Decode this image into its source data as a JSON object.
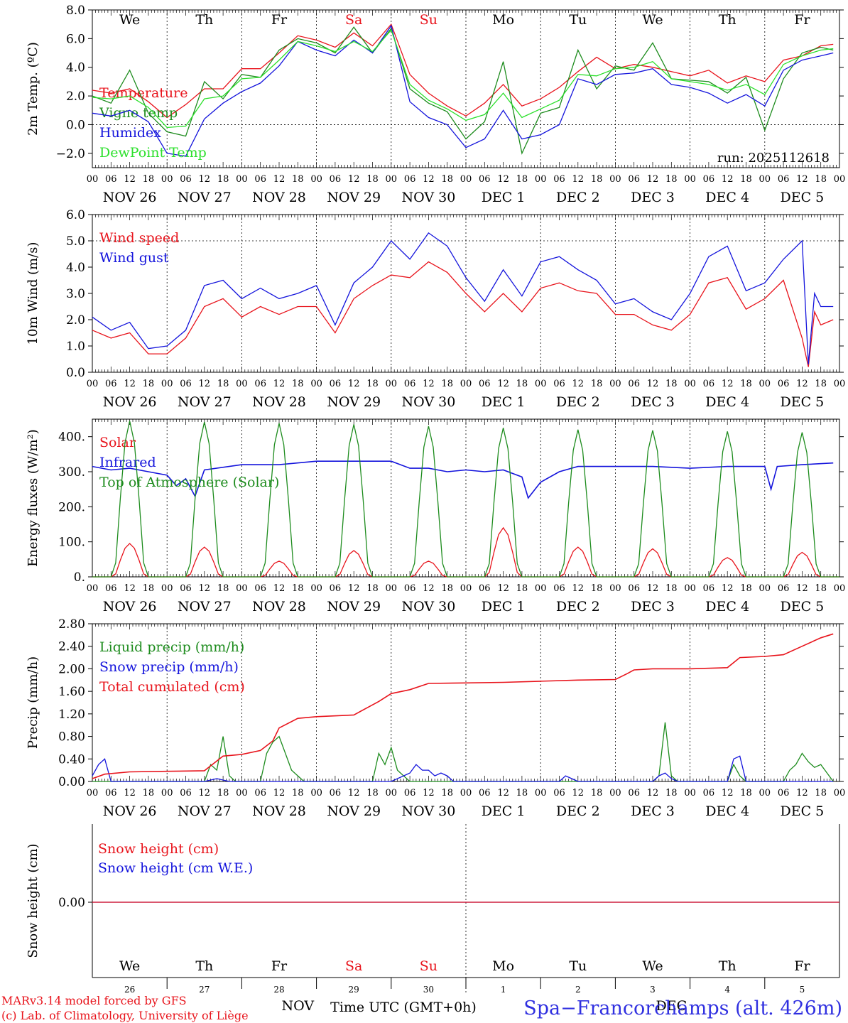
{
  "chart_data": [
    {
      "type": "line",
      "id": "temp",
      "ylabel": "2m Temp. (ºC)",
      "ylim": [
        -3,
        8
      ],
      "yticks": [
        -2,
        0,
        2,
        4,
        6,
        8
      ],
      "ytick_labels": [
        "−2.0",
        "0.0",
        "2.0",
        "4.0",
        "6.0",
        "8.0"
      ],
      "ref_lines": [
        0
      ],
      "run_label": "run: 2025112618",
      "series": [
        {
          "name": "Temperature",
          "color": "#e8141c",
          "x": [
            0,
            6,
            12,
            18,
            24,
            30,
            36,
            42,
            48,
            54,
            60,
            66,
            72,
            78,
            84,
            90,
            96,
            102,
            108,
            114,
            120,
            126,
            132,
            138,
            144,
            150,
            156,
            162,
            168,
            174,
            180,
            186,
            192,
            198,
            204,
            210,
            216,
            222,
            228,
            234,
            238
          ],
          "y": [
            2.4,
            2.2,
            2.5,
            1.6,
            0.5,
            1.4,
            2.5,
            2.5,
            3.9,
            3.9,
            5.0,
            6.2,
            5.9,
            5.4,
            6.4,
            5.5,
            7.0,
            3.5,
            2.2,
            1.3,
            0.6,
            1.5,
            2.8,
            1.3,
            1.8,
            2.6,
            3.7,
            4.7,
            3.9,
            4.2,
            4.0,
            3.7,
            3.4,
            3.8,
            2.9,
            3.4,
            3.0,
            4.5,
            4.8,
            5.5,
            5.6
          ]
        },
        {
          "name": "Vigne temp",
          "color": "#1e8c1e",
          "x": [
            0,
            6,
            12,
            18,
            24,
            30,
            36,
            42,
            48,
            54,
            60,
            66,
            72,
            78,
            84,
            90,
            96,
            102,
            108,
            114,
            120,
            126,
            132,
            138,
            144,
            150,
            156,
            162,
            168,
            174,
            180,
            186,
            192,
            198,
            204,
            210,
            216,
            222,
            228,
            234,
            238
          ],
          "y": [
            2.0,
            1.5,
            3.8,
            0.8,
            -0.5,
            -0.8,
            3.0,
            1.8,
            3.5,
            3.3,
            5.2,
            6.0,
            5.7,
            5.0,
            6.8,
            5.0,
            6.7,
            2.5,
            1.5,
            0.9,
            -1.0,
            0.2,
            4.4,
            -2.0,
            0.8,
            1.2,
            5.2,
            2.5,
            4.1,
            3.8,
            5.7,
            3.2,
            3.1,
            3.0,
            2.2,
            3.3,
            -0.4,
            3.2,
            5.0,
            5.4,
            5.2
          ]
        },
        {
          "name": "Humidex",
          "color": "#1414dc",
          "x": [
            0,
            6,
            12,
            18,
            24,
            30,
            36,
            42,
            48,
            54,
            60,
            66,
            72,
            78,
            84,
            90,
            96,
            102,
            108,
            114,
            120,
            126,
            132,
            138,
            144,
            150,
            156,
            162,
            168,
            174,
            180,
            186,
            192,
            198,
            204,
            210,
            216,
            222,
            228,
            234,
            238
          ],
          "y": [
            0.8,
            0.6,
            1.0,
            0.2,
            -2.0,
            -2.2,
            0.4,
            1.5,
            2.3,
            2.9,
            4.1,
            5.8,
            5.2,
            4.8,
            5.9,
            5.0,
            6.9,
            1.6,
            0.5,
            0.0,
            -1.6,
            -1.0,
            1.0,
            -1.0,
            -0.7,
            0.0,
            3.2,
            2.8,
            3.5,
            3.6,
            3.9,
            2.8,
            2.6,
            2.2,
            1.5,
            2.1,
            1.3,
            3.8,
            4.5,
            4.8,
            5.0
          ]
        },
        {
          "name": "DewPoint Temp",
          "color": "#2ce02c",
          "x": [
            0,
            6,
            12,
            18,
            24,
            30,
            36,
            42,
            48,
            54,
            60,
            66,
            72,
            78,
            84,
            90,
            96,
            102,
            108,
            114,
            120,
            126,
            132,
            138,
            144,
            150,
            156,
            162,
            168,
            174,
            180,
            186,
            192,
            198,
            204,
            210,
            216,
            222,
            228,
            234,
            238
          ],
          "y": [
            1.9,
            1.8,
            2.0,
            1.2,
            -0.2,
            -0.1,
            1.8,
            2.0,
            3.2,
            3.3,
            4.5,
            5.8,
            5.5,
            5.1,
            5.8,
            5.1,
            6.6,
            2.8,
            1.7,
            1.1,
            0.3,
            0.7,
            2.2,
            0.5,
            1.1,
            1.7,
            3.5,
            3.4,
            3.9,
            4.0,
            4.4,
            3.2,
            3.0,
            2.8,
            2.4,
            2.8,
            2.1,
            4.2,
            4.8,
            5.2,
            5.3
          ]
        }
      ]
    },
    {
      "type": "line",
      "id": "wind",
      "ylabel": "10m Wind (m/s)",
      "ylim": [
        0,
        6
      ],
      "yticks": [
        0,
        1,
        2,
        3,
        4,
        5,
        6
      ],
      "ytick_labels": [
        "0.0",
        "1.0",
        "2.0",
        "3.0",
        "4.0",
        "5.0",
        "6.0"
      ],
      "ref_lines": [
        5
      ],
      "series": [
        {
          "name": "Wind speed",
          "color": "#e8141c",
          "x": [
            0,
            6,
            12,
            18,
            24,
            30,
            36,
            42,
            48,
            54,
            60,
            66,
            72,
            78,
            84,
            90,
            96,
            102,
            108,
            114,
            120,
            126,
            132,
            138,
            144,
            150,
            156,
            162,
            168,
            174,
            180,
            186,
            192,
            198,
            204,
            210,
            216,
            222,
            228,
            230,
            232,
            234,
            238
          ],
          "y": [
            1.6,
            1.3,
            1.5,
            0.7,
            0.7,
            1.3,
            2.5,
            2.8,
            2.1,
            2.5,
            2.2,
            2.5,
            2.5,
            1.5,
            2.8,
            3.3,
            3.7,
            3.6,
            4.2,
            3.8,
            3.0,
            2.3,
            3.0,
            2.3,
            3.2,
            3.4,
            3.1,
            3.0,
            2.2,
            2.2,
            1.8,
            1.6,
            2.2,
            3.4,
            3.6,
            2.4,
            2.8,
            3.5,
            1.3,
            0.2,
            2.3,
            1.8,
            2.0
          ]
        },
        {
          "name": "Wind gust",
          "color": "#1414dc",
          "x": [
            0,
            6,
            12,
            18,
            24,
            30,
            36,
            42,
            48,
            54,
            60,
            66,
            72,
            78,
            84,
            90,
            96,
            102,
            108,
            114,
            120,
            126,
            132,
            138,
            144,
            150,
            156,
            162,
            168,
            174,
            180,
            186,
            192,
            198,
            204,
            210,
            216,
            222,
            228,
            230,
            232,
            234,
            238
          ],
          "y": [
            2.1,
            1.6,
            1.9,
            0.9,
            1.0,
            1.6,
            3.3,
            3.5,
            2.8,
            3.2,
            2.8,
            3.0,
            3.3,
            1.8,
            3.4,
            4.0,
            5.0,
            4.3,
            5.3,
            4.8,
            3.6,
            2.7,
            3.9,
            2.9,
            4.2,
            4.4,
            3.9,
            3.5,
            2.6,
            2.8,
            2.3,
            2.0,
            3.0,
            4.4,
            4.8,
            3.1,
            3.4,
            4.3,
            5.0,
            0.3,
            3.0,
            2.5,
            2.5
          ]
        }
      ]
    },
    {
      "type": "line",
      "id": "energy",
      "ylabel": "Energy fluxes (W/m²)",
      "ylim": [
        0,
        450
      ],
      "yticks": [
        0,
        100,
        200,
        300,
        400
      ],
      "ytick_labels": [
        "0.",
        "100.",
        "200.",
        "300.",
        "400."
      ],
      "ref_lines": [],
      "series": [
        {
          "name": "Solar",
          "color": "#e8141c",
          "peaks": [
            95,
            85,
            45,
            75,
            45,
            140,
            85,
            80,
            55,
            70
          ]
        },
        {
          "name": "Infrared",
          "color": "#1414dc",
          "x": [
            0,
            6,
            12,
            18,
            24,
            27,
            30,
            33,
            36,
            48,
            60,
            72,
            84,
            96,
            102,
            108,
            114,
            120,
            126,
            132,
            138,
            140,
            144,
            150,
            156,
            168,
            180,
            192,
            204,
            216,
            218,
            220,
            228,
            238
          ],
          "y": [
            315,
            305,
            310,
            300,
            290,
            260,
            280,
            230,
            305,
            320,
            320,
            330,
            330,
            330,
            310,
            310,
            300,
            305,
            300,
            305,
            285,
            225,
            270,
            300,
            315,
            315,
            315,
            310,
            315,
            315,
            250,
            315,
            320,
            325
          ]
        },
        {
          "name": "Top of Atmosphere (Solar)",
          "color": "#1e8c1e",
          "peaks": [
            445,
            442,
            438,
            435,
            430,
            425,
            420,
            418,
            415,
            412
          ]
        }
      ]
    },
    {
      "type": "line",
      "id": "precip",
      "ylabel": "Precip (mm/h)",
      "ylim": [
        0,
        2.8
      ],
      "yticks": [
        0,
        0.4,
        0.8,
        1.2,
        1.6,
        2.0,
        2.4,
        2.8
      ],
      "ytick_labels": [
        "0.00",
        "0.40",
        "0.80",
        "1.20",
        "1.60",
        "2.00",
        "2.40",
        "2.80"
      ],
      "ref_lines": [],
      "series": [
        {
          "name": "Liquid precip (mm/h)",
          "color": "#1e8c1e",
          "x": [
            0,
            36,
            38,
            40,
            42,
            44,
            46,
            48,
            54,
            56,
            58,
            60,
            62,
            64,
            66,
            68,
            90,
            92,
            94,
            96,
            98,
            100,
            102,
            104,
            180,
            182,
            184,
            186,
            188,
            204,
            206,
            208,
            210,
            222,
            224,
            226,
            228,
            230,
            232,
            234,
            236,
            238
          ],
          "y": [
            0.0,
            0.0,
            0.3,
            0.2,
            0.8,
            0.1,
            0.0,
            0.0,
            0.0,
            0.5,
            0.7,
            0.8,
            0.5,
            0.2,
            0.1,
            0.0,
            0.0,
            0.5,
            0.3,
            0.6,
            0.2,
            0.1,
            0.0,
            0.0,
            0.0,
            0.1,
            1.05,
            0.1,
            0.0,
            0.0,
            0.3,
            0.1,
            0.0,
            0.0,
            0.2,
            0.3,
            0.5,
            0.35,
            0.25,
            0.3,
            0.15,
            0.0
          ]
        },
        {
          "name": "Snow precip (mm/h)",
          "color": "#1414dc",
          "x": [
            0,
            2,
            4,
            6,
            36,
            40,
            44,
            96,
            100,
            102,
            104,
            106,
            108,
            110,
            112,
            114,
            116,
            150,
            152,
            154,
            156,
            180,
            182,
            184,
            186,
            188,
            204,
            206,
            208,
            210,
            238
          ],
          "y": [
            0.1,
            0.3,
            0.4,
            0.0,
            0.0,
            0.05,
            0.0,
            0.0,
            0.1,
            0.15,
            0.3,
            0.2,
            0.2,
            0.1,
            0.15,
            0.1,
            0.0,
            0.0,
            0.1,
            0.05,
            0.0,
            0.0,
            0.1,
            0.15,
            0.05,
            0.0,
            0.0,
            0.4,
            0.45,
            0.0,
            0.0
          ]
        },
        {
          "name": "Total cumulated (cm)",
          "color": "#e8141c",
          "x": [
            0,
            4,
            12,
            24,
            36,
            42,
            48,
            54,
            58,
            60,
            66,
            72,
            84,
            88,
            92,
            96,
            102,
            108,
            120,
            132,
            144,
            156,
            168,
            172,
            174,
            180,
            192,
            204,
            208,
            216,
            222,
            228,
            234,
            238
          ],
          "y": [
            0.05,
            0.13,
            0.17,
            0.18,
            0.19,
            0.45,
            0.48,
            0.55,
            0.72,
            0.95,
            1.12,
            1.15,
            1.18,
            1.3,
            1.42,
            1.56,
            1.63,
            1.74,
            1.75,
            1.76,
            1.78,
            1.8,
            1.81,
            1.92,
            1.98,
            2.0,
            2.0,
            2.02,
            2.2,
            2.22,
            2.25,
            2.4,
            2.55,
            2.62
          ]
        }
      ]
    },
    {
      "type": "line",
      "id": "snow",
      "ylabel": "Snow height (cm)",
      "yticks": [
        0
      ],
      "ytick_labels": [
        "0.00"
      ],
      "series": [
        {
          "name": "Snow height (cm)",
          "color": "#e8141c",
          "x": [
            0,
            240
          ],
          "y": [
            0,
            0
          ]
        },
        {
          "name": "Snow height (cm W.E.)",
          "color": "#1414dc",
          "x": [
            0,
            240
          ],
          "y": [
            0,
            0
          ]
        }
      ]
    }
  ],
  "axis": {
    "hour_labels": [
      "00",
      "06",
      "12",
      "18"
    ],
    "end_label": "00",
    "date_labels": [
      "NOV 26",
      "NOV 27",
      "NOV 28",
      "NOV 29",
      "NOV 30",
      "DEC  1",
      "DEC  2",
      "DEC  3",
      "DEC  4",
      "DEC  5"
    ],
    "weekdays": [
      "We",
      "Th",
      "Fr",
      "Sa",
      "Su",
      "Mo",
      "Tu",
      "We",
      "Th",
      "Fr"
    ],
    "weekend_color": "#e8141c",
    "day_numbers": [
      "26",
      "27",
      "28",
      "29",
      "30",
      "1",
      "2",
      "3",
      "4",
      "5"
    ],
    "month_nov": "NOV",
    "month_dec": "DEC",
    "time_label": "Time UTC (GMT+0h)"
  },
  "footer": {
    "credit_line1": "MARv3.14 model forced by GFS",
    "credit_line2": "(c) Lab. of Climatology, University of Liège",
    "station": "Spa−Francorchamps (alt. 426m)"
  }
}
